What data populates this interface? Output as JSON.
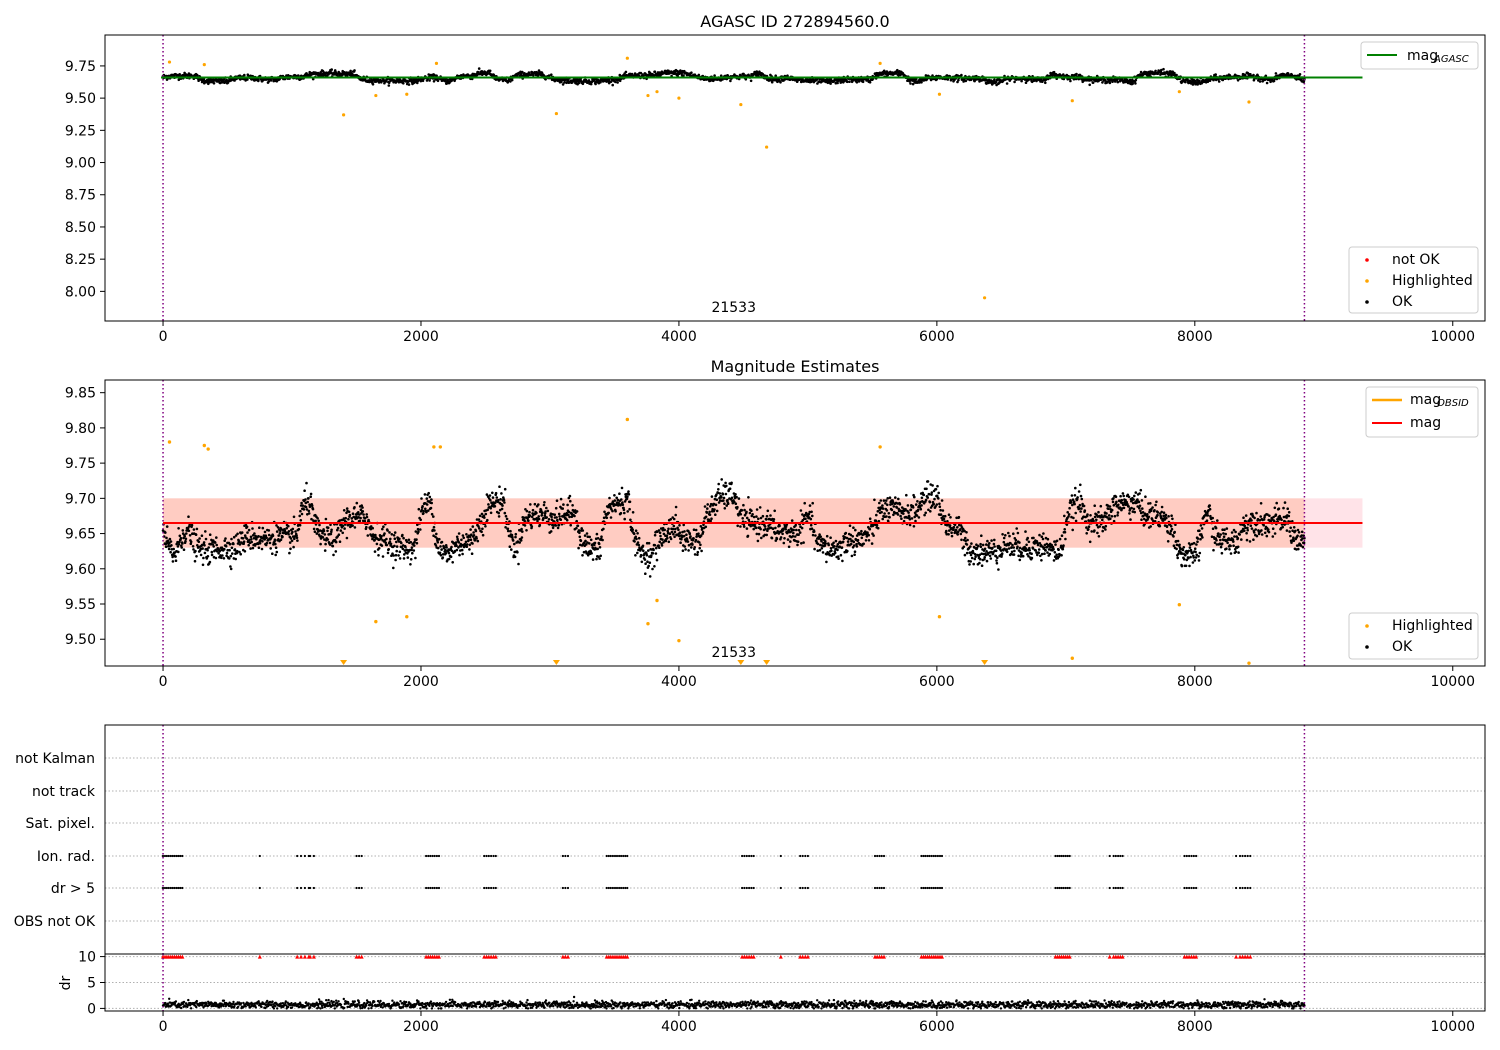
{
  "figure": {
    "top_title": "AGASC ID 272894560.0",
    "middle_title": "Magnitude Estimates",
    "obsid_label": "21533"
  },
  "colors": {
    "ok": "#000000",
    "highlighted": "#ffa500",
    "not_ok": "#ff0000",
    "mag_agasc": "#008000",
    "mag": "#ff0000",
    "mag_obsid": "#ffa500",
    "band": "#ffc0cb",
    "band_overlap": "#ffa07a",
    "obsid_line": "#800080",
    "grid": "#b0b0b0"
  },
  "chart_data": [
    {
      "type": "scatter",
      "title": "AGASC ID 272894560.0",
      "xlim": [
        -450,
        10250
      ],
      "ylim": [
        7.77,
        9.99
      ],
      "xticks": [
        "0",
        "2000",
        "4000",
        "6000",
        "8000",
        "10000"
      ],
      "yticks": [
        "8.00",
        "8.25",
        "8.50",
        "8.75",
        "9.00",
        "9.25",
        "9.50",
        "9.75"
      ],
      "legend_upper": [
        {
          "name": "mag",
          "sub": "AGASC",
          "kind": "line"
        }
      ],
      "legend_lower": [
        {
          "name": "not OK",
          "kind": "point"
        },
        {
          "name": "Highlighted",
          "kind": "point"
        },
        {
          "name": "OK",
          "kind": "point"
        }
      ],
      "legend_placement": "upper right / lower right",
      "mag_agasc": 9.66,
      "obsid_bounds": [
        0,
        8850
      ],
      "ok_band": {
        "x_range": [
          0,
          8850
        ],
        "center": 9.66,
        "amplitude": 0.04,
        "noise": 0.025
      },
      "highlighted_points": [
        [
          50,
          9.78
        ],
        [
          320,
          9.76
        ],
        [
          1400,
          9.37
        ],
        [
          1650,
          9.52
        ],
        [
          1890,
          9.53
        ],
        [
          2120,
          9.77
        ],
        [
          3050,
          9.38
        ],
        [
          3600,
          9.81
        ],
        [
          3760,
          9.52
        ],
        [
          3830,
          9.55
        ],
        [
          4000,
          9.5
        ],
        [
          4480,
          9.45
        ],
        [
          4680,
          9.12
        ],
        [
          5560,
          9.77
        ],
        [
          6020,
          9.53
        ],
        [
          6370,
          7.95
        ],
        [
          7050,
          9.48
        ],
        [
          7880,
          9.55
        ],
        [
          8420,
          9.47
        ]
      ]
    },
    {
      "type": "scatter",
      "title": "Magnitude Estimates",
      "xlim": [
        -450,
        10250
      ],
      "ylim": [
        9.462,
        9.868
      ],
      "xticks": [
        "0",
        "2000",
        "4000",
        "6000",
        "8000",
        "10000"
      ],
      "yticks": [
        "9.50",
        "9.55",
        "9.60",
        "9.65",
        "9.70",
        "9.75",
        "9.80",
        "9.85"
      ],
      "legend_upper": [
        {
          "name": "mag",
          "sub": "OBSID",
          "kind": "line"
        },
        {
          "name": "mag",
          "kind": "line"
        }
      ],
      "legend_lower": [
        {
          "name": "Highlighted",
          "kind": "point"
        },
        {
          "name": "OK",
          "kind": "point"
        }
      ],
      "legend_placement": "upper right / lower right",
      "mag": 9.665,
      "mag_band": [
        9.63,
        9.7
      ],
      "mag_obsid": 9.665,
      "obsid_band": [
        9.63,
        9.7
      ],
      "band_x_range": [
        0,
        9300
      ],
      "obsid_bounds": [
        0,
        8850
      ],
      "ok_band": {
        "x_range": [
          0,
          8850
        ],
        "center": 9.66,
        "amplitude": 0.045,
        "noise": 0.022
      },
      "highlighted_points": [
        [
          50,
          9.78
        ],
        [
          320,
          9.775
        ],
        [
          350,
          9.77
        ],
        [
          1650,
          9.525
        ],
        [
          1890,
          9.532
        ],
        [
          2100,
          9.773
        ],
        [
          2150,
          9.773
        ],
        [
          3600,
          9.812
        ],
        [
          3760,
          9.522
        ],
        [
          3830,
          9.555
        ],
        [
          4000,
          9.498
        ],
        [
          5560,
          9.773
        ],
        [
          6020,
          9.532
        ],
        [
          7050,
          9.473
        ],
        [
          7880,
          9.549
        ],
        [
          8420,
          9.466
        ]
      ],
      "offscale_markers_x": [
        1400,
        3050,
        4480,
        4680,
        6370
      ]
    },
    {
      "type": "scatter",
      "xlim": [
        -450,
        10250
      ],
      "categories": [
        "not Kalman",
        "not track",
        "Sat. pixel.",
        "Ion. rad.",
        "dr > 5",
        "OBS not OK"
      ],
      "flag_intervals": [
        [
          0,
          150
        ],
        [
          740,
          760
        ],
        [
          1040,
          1070
        ],
        [
          1100,
          1130
        ],
        [
          1140,
          1170
        ],
        [
          1500,
          1540
        ],
        [
          2040,
          2140
        ],
        [
          2490,
          2580
        ],
        [
          3100,
          3140
        ],
        [
          3440,
          3600
        ],
        [
          4490,
          4580
        ],
        [
          4780,
          4800
        ],
        [
          4940,
          5000
        ],
        [
          5520,
          5590
        ],
        [
          5880,
          6040
        ],
        [
          6920,
          7030
        ],
        [
          7330,
          7350
        ],
        [
          7370,
          7440
        ],
        [
          7920,
          8010
        ],
        [
          8320,
          8350
        ],
        [
          8370,
          8430
        ]
      ],
      "flagged_rows": [
        "Ion. rad.",
        "dr > 5"
      ],
      "obsid_bounds": [
        0,
        8850
      ]
    },
    {
      "type": "scatter",
      "ylabel": "dr",
      "xlim": [
        -450,
        10250
      ],
      "ylim": [
        -0.5,
        10.5
      ],
      "xticks": [
        "0",
        "2000",
        "4000",
        "6000",
        "8000",
        "10000"
      ],
      "yticks": [
        "0",
        "5",
        "10"
      ],
      "dr_capped_value": 10,
      "dr_typical": 0.7,
      "obsid_bounds": [
        0,
        8850
      ]
    }
  ]
}
